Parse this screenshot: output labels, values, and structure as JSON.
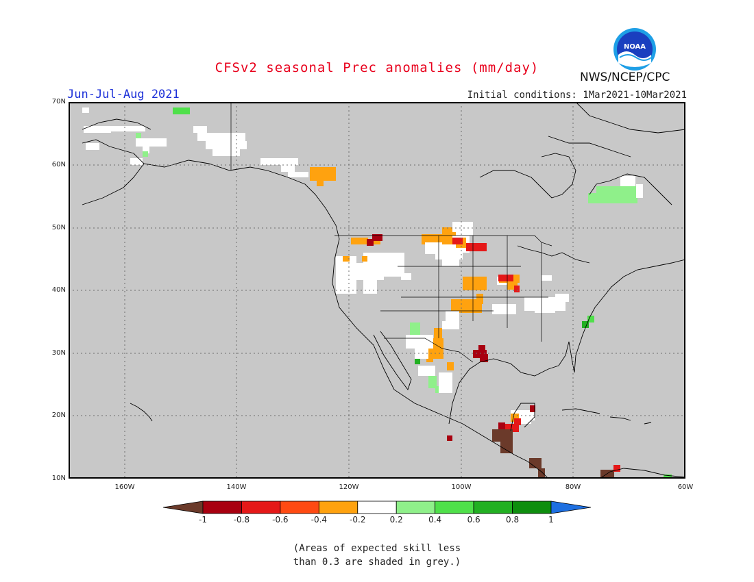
{
  "title": "CFSv2 seasonal Prec anomalies (mm/day)",
  "period": "Jun-Jul-Aug 2021",
  "initial_conditions": "Initial conditions: 1Mar2021-10Mar2021",
  "agency": "NWS/NCEP/CPC",
  "logo_text": "NOAA",
  "map": {
    "lat_labels": [
      "70N",
      "60N",
      "50N",
      "40N",
      "30N",
      "20N",
      "10N"
    ],
    "lon_labels": [
      "160W",
      "140W",
      "120W",
      "100W",
      "80W",
      "60W"
    ],
    "grid_color": "#6d6d6d",
    "background_color": "#c8c8c8"
  },
  "colorbar": {
    "labels": [
      "-1",
      "-0.8",
      "-0.6",
      "-0.4",
      "-0.2",
      "0.2",
      "0.4",
      "0.6",
      "0.8",
      "1"
    ],
    "colors": [
      "#6b3a2a",
      "#a80010",
      "#e51818",
      "#ff4a12",
      "#ffa20f",
      "#ffffff",
      "#8ff08a",
      "#4fe04a",
      "#22b022",
      "#0e8e0e",
      "#1e6fe0"
    ]
  },
  "anomaly_classes": {
    "dry_extreme": "#6b3a2a",
    "dry_strong": "#a80010",
    "dry_moderate": "#e51818",
    "dry_light": "#ffa20f",
    "near_normal": "#ffffff",
    "wet_light": "#8ff08a",
    "wet_moderate": "#4fe04a",
    "wet_strong": "#22b022"
  },
  "note_line1": "(Areas of expected skill less",
  "note_line2": "than 0.3 are shaded in grey.)"
}
